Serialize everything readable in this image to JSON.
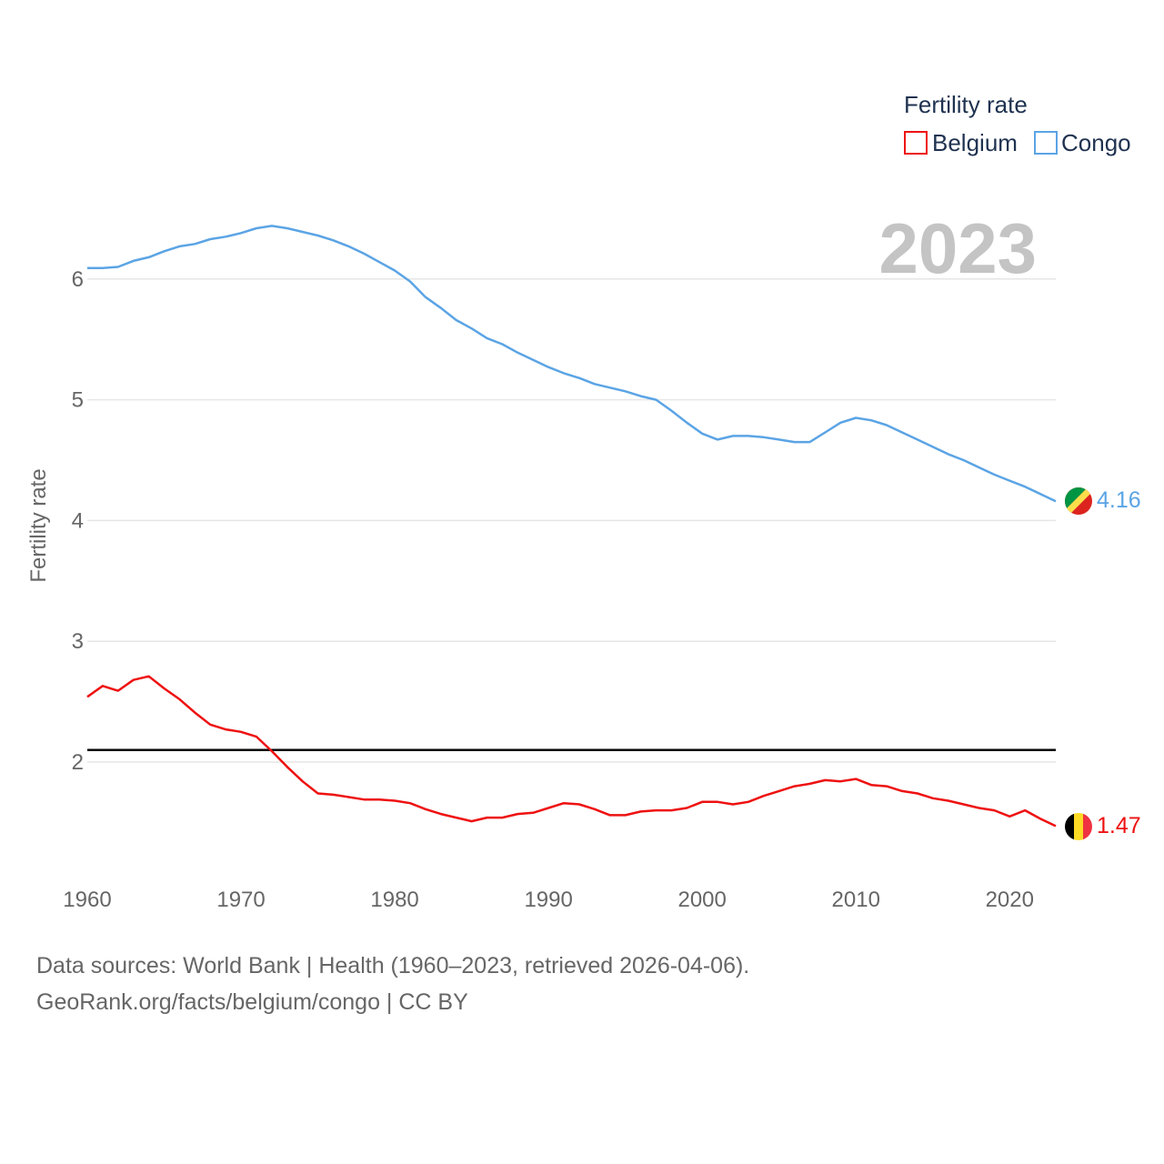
{
  "chart_data": {
    "type": "line",
    "title": "Fertility rate",
    "ylabel": "Fertility rate",
    "xlabel": "",
    "year_label": "2023",
    "xlim": [
      1960,
      2023
    ],
    "ylim": [
      1.2,
      6.7
    ],
    "x_ticks": [
      1960,
      1970,
      1980,
      1990,
      2000,
      2010,
      2020
    ],
    "y_ticks": [
      2,
      3,
      4,
      5,
      6
    ],
    "reference_line": 2.1,
    "legend": {
      "title": "Fertility rate",
      "position": "top-right"
    },
    "x": [
      1960,
      1961,
      1962,
      1963,
      1964,
      1965,
      1966,
      1967,
      1968,
      1969,
      1970,
      1971,
      1972,
      1973,
      1974,
      1975,
      1976,
      1977,
      1978,
      1979,
      1980,
      1981,
      1982,
      1983,
      1984,
      1985,
      1986,
      1987,
      1988,
      1989,
      1990,
      1991,
      1992,
      1993,
      1994,
      1995,
      1996,
      1997,
      1998,
      1999,
      2000,
      2001,
      2002,
      2003,
      2004,
      2005,
      2006,
      2007,
      2008,
      2009,
      2010,
      2011,
      2012,
      2013,
      2014,
      2015,
      2016,
      2017,
      2018,
      2019,
      2020,
      2021,
      2022,
      2023
    ],
    "series": [
      {
        "name": "Belgium",
        "color": "#ee1111",
        "flag": "belgium-flag",
        "end_label": "1.47",
        "values": [
          2.54,
          2.63,
          2.59,
          2.68,
          2.71,
          2.61,
          2.52,
          2.41,
          2.31,
          2.27,
          2.25,
          2.21,
          2.09,
          1.96,
          1.84,
          1.74,
          1.73,
          1.71,
          1.69,
          1.69,
          1.68,
          1.66,
          1.61,
          1.57,
          1.54,
          1.51,
          1.54,
          1.54,
          1.57,
          1.58,
          1.62,
          1.66,
          1.65,
          1.61,
          1.56,
          1.56,
          1.59,
          1.6,
          1.6,
          1.62,
          1.67,
          1.67,
          1.65,
          1.67,
          1.72,
          1.76,
          1.8,
          1.82,
          1.85,
          1.84,
          1.86,
          1.81,
          1.8,
          1.76,
          1.74,
          1.7,
          1.68,
          1.65,
          1.62,
          1.6,
          1.55,
          1.6,
          1.53,
          1.47
        ]
      },
      {
        "name": "Congo",
        "color": "#5ba4e5",
        "flag": "congo-flag",
        "end_label": "4.16",
        "values": [
          6.09,
          6.09,
          6.1,
          6.15,
          6.18,
          6.23,
          6.27,
          6.29,
          6.33,
          6.35,
          6.38,
          6.42,
          6.44,
          6.42,
          6.39,
          6.36,
          6.32,
          6.27,
          6.21,
          6.14,
          6.07,
          5.98,
          5.85,
          5.76,
          5.66,
          5.59,
          5.51,
          5.46,
          5.39,
          5.33,
          5.27,
          5.22,
          5.18,
          5.13,
          5.1,
          5.07,
          5.03,
          5.0,
          4.91,
          4.81,
          4.72,
          4.67,
          4.7,
          4.7,
          4.69,
          4.67,
          4.65,
          4.65,
          4.73,
          4.81,
          4.85,
          4.83,
          4.79,
          4.73,
          4.67,
          4.61,
          4.55,
          4.5,
          4.44,
          4.38,
          4.33,
          4.28,
          4.22,
          4.16
        ]
      }
    ]
  },
  "source": {
    "line1": "Data sources: World Bank | Health (1960–2023, retrieved 2026-04-06).",
    "line2": "GeoRank.org/facts/belgium/congo | CC BY"
  }
}
